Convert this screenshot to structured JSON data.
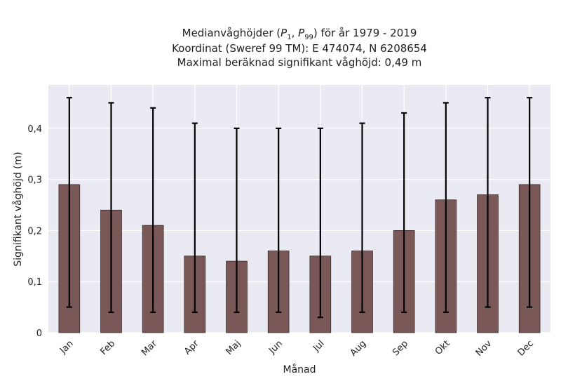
{
  "chart_data": {
    "type": "bar",
    "title_lines": [
      "Koordinat (Sweref 99 TM): E 474074, N 6208654",
      "Maximal beräknad signifikant våghöjd: 0,49 m"
    ],
    "title_first_line": {
      "prefix": "Medianvåghöjder (",
      "p": "P",
      "sub1": "1",
      "sep": ", ",
      "sub2": "99",
      "suffix": ") för år 1979 - 2019"
    },
    "xlabel": "Månad",
    "ylabel": "Signifikant våghöjd (m)",
    "categories": [
      "Jan",
      "Feb",
      "Mar",
      "Apr",
      "Maj",
      "Jun",
      "Jul",
      "Aug",
      "Sep",
      "Okt",
      "Nov",
      "Dec"
    ],
    "values": [
      0.29,
      0.24,
      0.21,
      0.15,
      0.14,
      0.16,
      0.15,
      0.16,
      0.2,
      0.26,
      0.27,
      0.29
    ],
    "p1": [
      0.05,
      0.04,
      0.04,
      0.04,
      0.04,
      0.04,
      0.03,
      0.04,
      0.04,
      0.04,
      0.05,
      0.05
    ],
    "p99": [
      0.46,
      0.45,
      0.44,
      0.41,
      0.4,
      0.4,
      0.4,
      0.41,
      0.43,
      0.45,
      0.46,
      0.46
    ],
    "ylim": [
      0,
      0.485
    ],
    "yticks": [
      0,
      0.1,
      0.2,
      0.3,
      0.4
    ],
    "ytick_labels": [
      "0",
      "0,1",
      "0,2",
      "0,3",
      "0,4"
    ],
    "grid": true,
    "colors": {
      "bar": "#7b5858",
      "bar_edge": "#3a2a2a",
      "errorbar": "#000000",
      "plot_bg": "#eaeaf2",
      "grid": "#ffffff"
    }
  }
}
